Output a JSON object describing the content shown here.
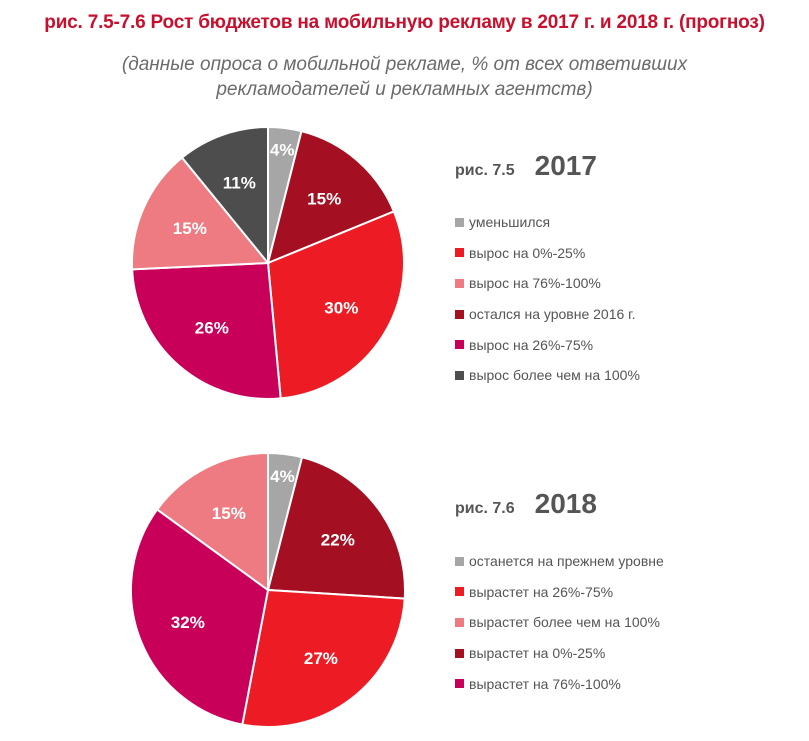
{
  "title": "рис. 7.5-7.6 Рост бюджетов на мобильную рекламу в 2017 г. и 2018 г. (прогноз)",
  "subtitle": [
    "(данные опроса о мобильной рекламе, % от всех ответивших",
    "рекламодателей и рекламных агентств)"
  ],
  "chart_data": [
    {
      "type": "pie",
      "figure_label": "рис. 7.5",
      "year": "2017",
      "slices": [
        {
          "label": "уменьшился",
          "value": 4,
          "display": "4%",
          "color": "#a6a6a6"
        },
        {
          "label": "остался на уровне 2016 г.",
          "value": 15,
          "display": "15%",
          "color": "#a50f22"
        },
        {
          "label": "вырос на 0%-25%",
          "value": 30,
          "display": "30%",
          "color": "#ed1c24"
        },
        {
          "label": "вырос на 26%-75%",
          "value": 26,
          "display": "26%",
          "color": "#c8005a"
        },
        {
          "label": "вырос на 76%-100%",
          "value": 15,
          "display": "15%",
          "color": "#ee7b82"
        },
        {
          "label": "вырос более чем на 100%",
          "value": 11,
          "display": "11%",
          "color": "#4d4d4d"
        }
      ],
      "legend": [
        {
          "label": "уменьшился",
          "color": "#a6a6a6"
        },
        {
          "label": "вырос на 0%-25%",
          "color": "#ed1c24"
        },
        {
          "label": "вырос на 76%-100%",
          "color": "#ee7b82"
        },
        {
          "label": "остался на уровне 2016 г.",
          "color": "#a50f22"
        },
        {
          "label": "вырос на 26%-75%",
          "color": "#c8005a"
        },
        {
          "label": "вырос более чем на 100%",
          "color": "#4d4d4d"
        }
      ]
    },
    {
      "type": "pie",
      "figure_label": "рис. 7.6",
      "year": "2018",
      "slices": [
        {
          "label": "останется на прежнем уровне",
          "value": 4,
          "display": "4%",
          "color": "#a6a6a6"
        },
        {
          "label": "вырастет на 0%-25%",
          "value": 22,
          "display": "22%",
          "color": "#a50f22"
        },
        {
          "label": "вырастет на 26%-75%",
          "value": 27,
          "display": "27%",
          "color": "#ed1c24"
        },
        {
          "label": "вырастет на 76%-100%",
          "value": 32,
          "display": "32%",
          "color": "#c8005a"
        },
        {
          "label": "вырастет более чем на 100%",
          "value": 15,
          "display": "15%",
          "color": "#ee7b82"
        }
      ],
      "legend": [
        {
          "label": "останется на прежнем уровне",
          "color": "#a6a6a6"
        },
        {
          "label": "вырастет на 26%-75%",
          "color": "#ed1c24"
        },
        {
          "label": "вырастет более чем на 100%",
          "color": "#ee7b82"
        },
        {
          "label": "вырастет на 0%-25%",
          "color": "#a50f22"
        },
        {
          "label": "вырастет на 76%-100%",
          "color": "#c8005a"
        }
      ]
    }
  ]
}
